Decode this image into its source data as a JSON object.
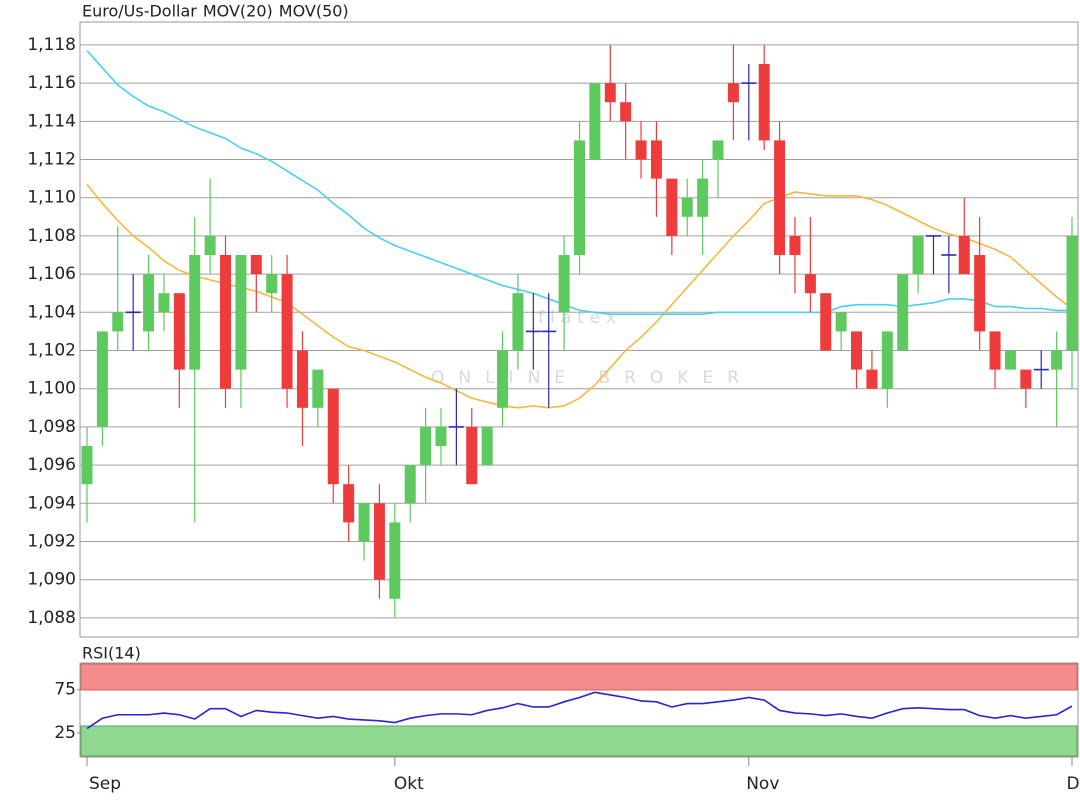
{
  "watermark": {
    "logo": "flatex",
    "tagline": "ONLINE BROKER"
  },
  "chart_data": [
    {
      "type": "candlestick",
      "categories": [
        "Sep",
        null,
        null,
        null,
        null,
        null,
        null,
        null,
        null,
        null,
        null,
        null,
        null,
        null,
        null,
        null,
        null,
        null,
        null,
        null,
        "Okt",
        null,
        null,
        null,
        null,
        null,
        null,
        null,
        null,
        null,
        null,
        null,
        null,
        null,
        null,
        null,
        null,
        null,
        null,
        null,
        null,
        null,
        null,
        "Nov",
        null,
        null,
        null,
        null,
        null,
        null,
        null,
        null,
        null,
        null,
        null,
        null,
        null,
        null,
        null,
        null,
        null,
        null,
        null,
        null,
        "D"
      ],
      "series": [
        {
          "name": "Euro/Us-Dollar",
          "color": "#f0583a",
          "open": [
            1.095,
            1.098,
            1.103,
            1.104,
            1.103,
            1.104,
            1.105,
            1.101,
            1.107,
            1.107,
            1.101,
            1.107,
            1.105,
            1.106,
            1.102,
            1.099,
            1.1,
            1.095,
            1.092,
            1.094,
            1.089,
            1.094,
            1.096,
            1.097,
            1.098,
            1.098,
            1.096,
            1.099,
            1.102,
            1.103,
            1.103,
            1.104,
            1.107,
            1.112,
            1.116,
            1.115,
            1.113,
            1.113,
            1.111,
            1.109,
            1.109,
            1.112,
            1.116,
            1.116,
            1.117,
            1.113,
            1.108,
            1.106,
            1.105,
            1.103,
            1.103,
            1.101,
            1.1,
            1.102,
            1.106,
            1.108,
            1.107,
            1.108,
            1.107,
            1.103,
            1.101,
            1.101,
            1.101,
            1.101,
            1.102
          ],
          "high": [
            1.098,
            1.103,
            1.1085,
            1.106,
            1.107,
            1.106,
            1.105,
            1.109,
            1.111,
            1.108,
            1.107,
            1.107,
            1.107,
            1.107,
            1.103,
            1.101,
            1.1,
            1.096,
            1.094,
            1.095,
            1.094,
            1.096,
            1.099,
            1.099,
            1.1,
            1.099,
            1.098,
            1.103,
            1.106,
            1.105,
            1.105,
            1.108,
            1.114,
            1.116,
            1.118,
            1.116,
            1.114,
            1.114,
            1.111,
            1.111,
            1.112,
            1.113,
            1.118,
            1.117,
            1.118,
            1.114,
            1.109,
            1.109,
            1.105,
            1.104,
            1.103,
            1.102,
            1.103,
            1.106,
            1.108,
            1.108,
            1.108,
            1.11,
            1.109,
            1.103,
            1.102,
            1.101,
            1.102,
            1.103,
            1.109
          ],
          "low": [
            1.093,
            1.097,
            1.102,
            1.102,
            1.102,
            1.103,
            1.099,
            1.093,
            1.106,
            1.099,
            1.099,
            1.104,
            1.104,
            1.099,
            1.097,
            1.098,
            1.094,
            1.092,
            1.091,
            1.089,
            1.088,
            1.093,
            1.094,
            1.096,
            1.096,
            1.095,
            1.096,
            1.098,
            1.101,
            1.101,
            1.099,
            1.102,
            1.106,
            1.112,
            1.114,
            1.112,
            1.111,
            1.109,
            1.107,
            1.108,
            1.107,
            1.11,
            1.113,
            1.113,
            1.1125,
            1.106,
            1.105,
            1.104,
            1.102,
            1.102,
            1.1,
            1.1,
            1.099,
            1.102,
            1.105,
            1.106,
            1.105,
            1.106,
            1.102,
            1.1,
            1.101,
            1.099,
            1.1,
            1.098,
            1.1
          ],
          "close": [
            1.097,
            1.103,
            1.104,
            1.104,
            1.106,
            1.105,
            1.101,
            1.107,
            1.108,
            1.1,
            1.107,
            1.106,
            1.106,
            1.1,
            1.099,
            1.101,
            1.095,
            1.093,
            1.094,
            1.09,
            1.093,
            1.096,
            1.098,
            1.098,
            1.098,
            1.095,
            1.098,
            1.102,
            1.105,
            1.103,
            1.103,
            1.107,
            1.113,
            1.116,
            1.115,
            1.114,
            1.112,
            1.111,
            1.108,
            1.11,
            1.111,
            1.113,
            1.115,
            1.116,
            1.113,
            1.107,
            1.107,
            1.105,
            1.102,
            1.104,
            1.101,
            1.1,
            1.103,
            1.106,
            1.108,
            1.108,
            1.107,
            1.106,
            1.103,
            1.101,
            1.102,
            1.1,
            1.101,
            1.102,
            1.108
          ]
        },
        {
          "name": "MOV(20)",
          "type": "line",
          "color": "#f5b83e",
          "values": [
            1.1107,
            1.1097,
            1.1088,
            1.108,
            1.1074,
            1.1067,
            1.1062,
            1.1059,
            1.1057,
            1.1055,
            1.1053,
            1.1051,
            1.1048,
            1.1045,
            1.1039,
            1.1033,
            1.1027,
            1.1022,
            1.102,
            1.1017,
            1.1014,
            1.101,
            1.1006,
            1.1003,
            1.0999,
            1.0995,
            1.0993,
            1.0991,
            1.099,
            1.0991,
            1.099,
            1.0991,
            1.0995,
            1.1002,
            1.1011,
            1.102,
            1.1027,
            1.1035,
            1.1044,
            1.1053,
            1.1062,
            1.1071,
            1.108,
            1.1088,
            1.1097,
            1.11,
            1.1103,
            1.1102,
            1.1101,
            1.1101,
            1.1101,
            1.1099,
            1.1096,
            1.1092,
            1.1088,
            1.1084,
            1.1081,
            1.1079,
            1.1076,
            1.1073,
            1.1069,
            1.1062,
            1.1055,
            1.1048,
            1.1042
          ]
        },
        {
          "name": "MOV(50)",
          "type": "line",
          "color": "#49d0f0",
          "values": [
            1.1177,
            1.1168,
            1.1159,
            1.1153,
            1.1148,
            1.1145,
            1.1141,
            1.1137,
            1.1134,
            1.1131,
            1.1126,
            1.1123,
            1.1119,
            1.1114,
            1.1109,
            1.1104,
            1.1097,
            1.1091,
            1.1084,
            1.1079,
            1.1075,
            1.1072,
            1.1069,
            1.1066,
            1.1063,
            1.106,
            1.1057,
            1.1054,
            1.1052,
            1.105,
            1.1047,
            1.1044,
            1.1041,
            1.104,
            1.1039,
            1.1039,
            1.1039,
            1.1039,
            1.1039,
            1.1039,
            1.1039,
            1.104,
            1.104,
            1.104,
            1.104,
            1.104,
            1.104,
            1.104,
            1.104,
            1.1043,
            1.1044,
            1.1044,
            1.1044,
            1.1043,
            1.1044,
            1.1045,
            1.1047,
            1.1047,
            1.1046,
            1.1043,
            1.1043,
            1.1042,
            1.1042,
            1.1041,
            1.1041
          ]
        }
      ],
      "up_color": "#5ec95e",
      "down_color": "#ee3b3b",
      "doji_color": "#2a2ab5",
      "ylim": [
        1.087,
        1.1192
      ],
      "yticks": [
        {
          "value": 1.088,
          "label": "1,088"
        },
        {
          "value": 1.09,
          "label": "1,090"
        },
        {
          "value": 1.092,
          "label": "1,092"
        },
        {
          "value": 1.094,
          "label": "1,094"
        },
        {
          "value": 1.096,
          "label": "1,096"
        },
        {
          "value": 1.098,
          "label": "1,098"
        },
        {
          "value": 1.1,
          "label": "1,100"
        },
        {
          "value": 1.102,
          "label": "1,102"
        },
        {
          "value": 1.104,
          "label": "1,104"
        },
        {
          "value": 1.106,
          "label": "1,106"
        },
        {
          "value": 1.108,
          "label": "1,108"
        },
        {
          "value": 1.11,
          "label": "1,110"
        },
        {
          "value": 1.112,
          "label": "1,112"
        },
        {
          "value": 1.114,
          "label": "1,114"
        },
        {
          "value": 1.116,
          "label": "1,116"
        },
        {
          "value": 1.118,
          "label": "1,118"
        }
      ],
      "grid": true
    },
    {
      "type": "line",
      "series": [
        {
          "name": "RSI(14)",
          "color": "#2424d8",
          "values": [
            30,
            42,
            46,
            46,
            46,
            48,
            46,
            41,
            53,
            53,
            44,
            51,
            49,
            48,
            45,
            42,
            44,
            41,
            40,
            39,
            37,
            42,
            45,
            47,
            47,
            46,
            51,
            54,
            59,
            55,
            55,
            61,
            66,
            72,
            69,
            66,
            62,
            61,
            55,
            59,
            59,
            61,
            63,
            66,
            63,
            51,
            48,
            47,
            45,
            47,
            44,
            42,
            48,
            53,
            54,
            53,
            52,
            52,
            45,
            42,
            45,
            42,
            44,
            46,
            56
          ]
        }
      ],
      "ylim": [
        -3,
        106
      ],
      "yticks": [
        25,
        75
      ]
    }
  ]
}
